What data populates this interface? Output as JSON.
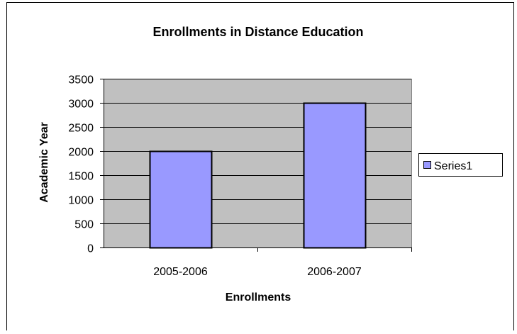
{
  "chart_data": {
    "type": "bar",
    "title": "Enrollments in Distance Education",
    "xlabel": "Enrollments",
    "ylabel": "Academic Year",
    "categories": [
      "2005-2006",
      "2006-2007"
    ],
    "series": [
      {
        "name": "Series1",
        "values": [
          2000,
          3000
        ]
      }
    ],
    "ylim": [
      0,
      3500
    ],
    "yticks": [
      0,
      500,
      1000,
      1500,
      2000,
      2500,
      3000,
      3500
    ],
    "grid": true,
    "legend_position": "right",
    "colors": {
      "bar_fill": "#9999ff",
      "plot_background": "#c0c0c0",
      "gridline": "#000000",
      "frame": "#000000"
    }
  }
}
